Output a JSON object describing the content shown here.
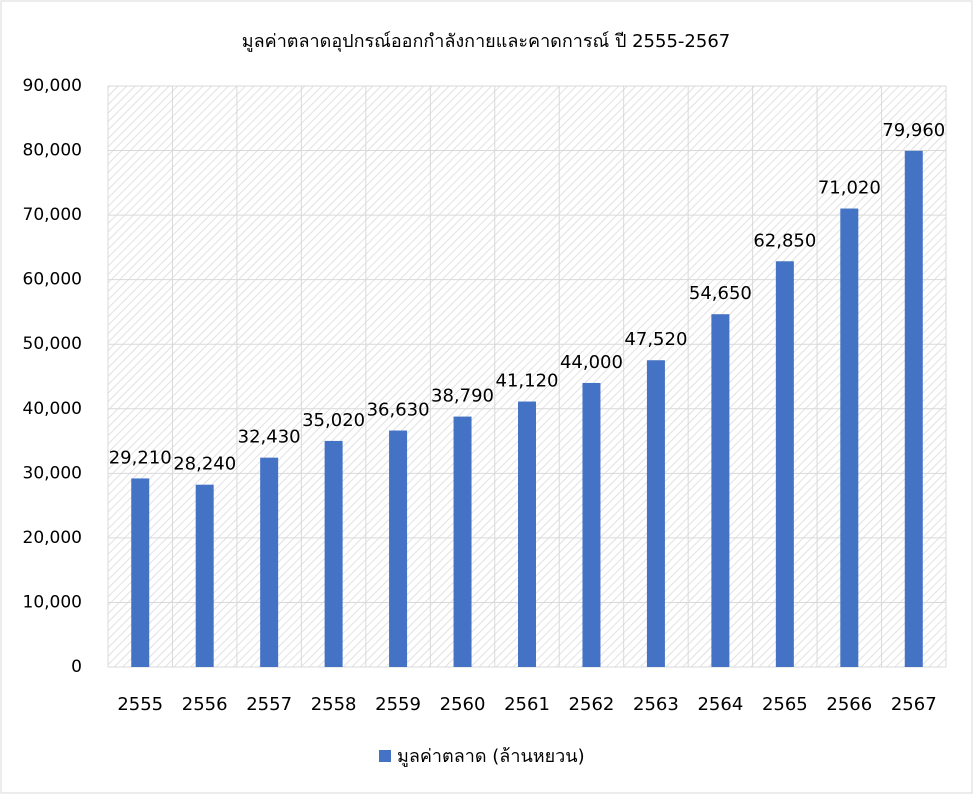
{
  "chart_data": {
    "type": "bar",
    "title": "มูลค่าตลาดอุปกรณ์ออกกำลังกายและคาดการณ์ ปี 2555-2567",
    "categories": [
      "2555",
      "2556",
      "2557",
      "2558",
      "2559",
      "2560",
      "2561",
      "2562",
      "2563",
      "2564",
      "2565",
      "2566",
      "2567"
    ],
    "series": [
      {
        "name": "มูลค่าตลาด (ล้านหยวน)",
        "color": "#4472c4",
        "values": [
          29210,
          28240,
          32430,
          35020,
          36630,
          38790,
          41120,
          44000,
          47520,
          54650,
          62850,
          71020,
          79960
        ],
        "value_labels": [
          "29,210",
          "28,240",
          "32,430",
          "35,020",
          "36,630",
          "38,790",
          "41,120",
          "44,000",
          "47,520",
          "54,650",
          "62,850",
          "71,020",
          "79,960"
        ]
      }
    ],
    "ylim": [
      0,
      90000
    ],
    "yticks": [
      0,
      {
        "value": 10000,
        "label": "10,000"
      },
      {
        "value": 20000,
        "label": "20,000"
      },
      {
        "value": 30000,
        "label": "30,000"
      },
      {
        "value": 40000,
        "label": "40,000"
      },
      {
        "value": 50000,
        "label": "50,000"
      },
      {
        "value": 60000,
        "label": "60,000"
      },
      {
        "value": 70000,
        "label": "70,000"
      },
      {
        "value": 80000,
        "label": "80,000"
      },
      {
        "value": 90000,
        "label": "90,000"
      }
    ],
    "grid": true,
    "legend": "bottom"
  }
}
